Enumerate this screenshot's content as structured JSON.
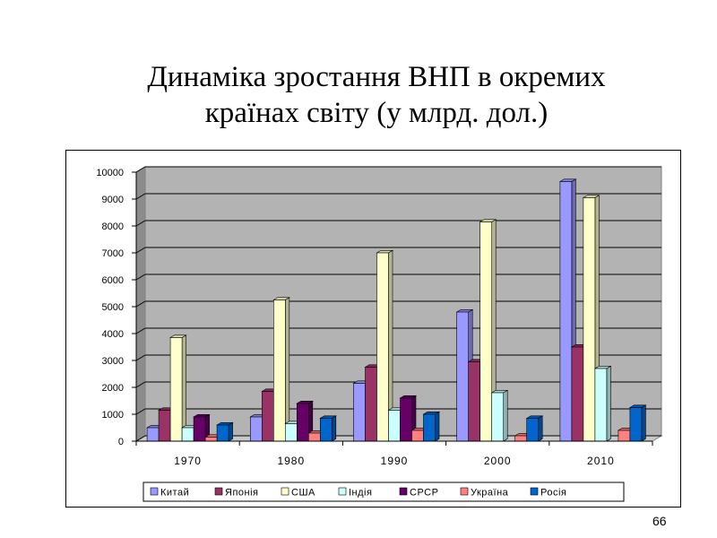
{
  "slide": {
    "title_line1": "Динаміка зростання ВНП в окремих",
    "title_line2": "країнах світу (у млрд. дол.)",
    "page_number": "66"
  },
  "chart_data": {
    "type": "bar",
    "categories": [
      "1970",
      "1980",
      "1990",
      "2000",
      "2010"
    ],
    "ylim": [
      0,
      10000
    ],
    "yticks": [
      "0",
      "1000",
      "2000",
      "3000",
      "4000",
      "5000",
      "6000",
      "7000",
      "8000",
      "9000",
      "10000"
    ],
    "grid": true,
    "legend_position": "bottom",
    "three_d": true,
    "series": [
      {
        "name": "Китай",
        "color": "#9999FF",
        "values": [
          500,
          900,
          2150,
          4800,
          9650
        ]
      },
      {
        "name": "Японія",
        "color": "#993366",
        "values": [
          1150,
          1850,
          2750,
          2950,
          3500
        ]
      },
      {
        "name": "США",
        "color": "#FFFFCC",
        "values": [
          3850,
          5250,
          7000,
          8150,
          9050
        ]
      },
      {
        "name": "Індія",
        "color": "#CCFFFF",
        "values": [
          500,
          650,
          1150,
          1800,
          2700
        ]
      },
      {
        "name": "СРСР",
        "color": "#660066",
        "values": [
          900,
          1400,
          1600,
          null,
          null
        ]
      },
      {
        "name": "Україна",
        "color": "#FF8080",
        "values": [
          150,
          300,
          400,
          200,
          400
        ]
      },
      {
        "name": "Росія",
        "color": "#0066CC",
        "values": [
          600,
          850,
          1000,
          850,
          1250
        ]
      }
    ]
  }
}
